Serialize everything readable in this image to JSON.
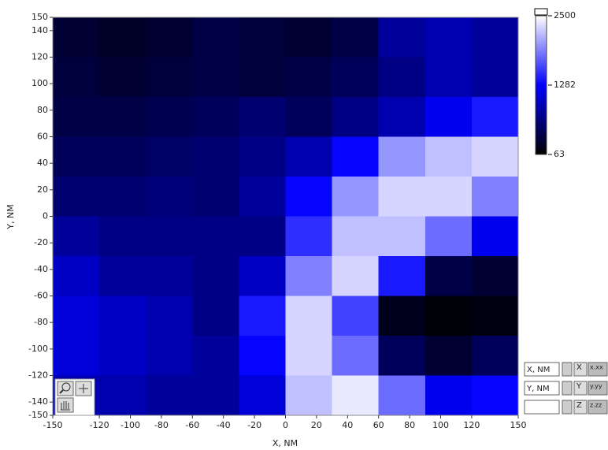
{
  "chart_data": {
    "type": "heatmap",
    "xlabel": "X, NM",
    "ylabel": "Y, NM",
    "xlim": [
      -150,
      150
    ],
    "ylim": [
      -150,
      150
    ],
    "xticks": [
      -150,
      -120,
      -100,
      -80,
      -60,
      -40,
      -20,
      0,
      20,
      40,
      60,
      80,
      100,
      120,
      150
    ],
    "yticks": [
      150,
      140,
      120,
      100,
      80,
      60,
      40,
      20,
      0,
      -20,
      -40,
      -60,
      -80,
      -100,
      -120,
      -140,
      -150
    ],
    "x": [
      -135,
      -105,
      -75,
      -45,
      -15,
      15,
      45,
      75,
      105,
      135
    ],
    "y": [
      135,
      105,
      75,
      45,
      15,
      -15,
      -45,
      -75,
      -105,
      -135
    ],
    "z": [
      [
        300,
        250,
        300,
        400,
        350,
        300,
        400,
        800,
        900,
        800
      ],
      [
        350,
        300,
        350,
        400,
        350,
        400,
        500,
        700,
        900,
        800
      ],
      [
        400,
        400,
        450,
        500,
        600,
        500,
        700,
        900,
        1200,
        1400
      ],
      [
        500,
        500,
        550,
        600,
        700,
        900,
        1300,
        2000,
        2200,
        2300
      ],
      [
        600,
        600,
        650,
        600,
        800,
        1300,
        2000,
        2300,
        2300,
        1900
      ],
      [
        800,
        700,
        700,
        700,
        700,
        1500,
        2200,
        2200,
        1800,
        1200
      ],
      [
        1000,
        800,
        800,
        700,
        1000,
        1900,
        2300,
        1400,
        400,
        300
      ],
      [
        1100,
        1000,
        900,
        700,
        1400,
        2300,
        1600,
        200,
        100,
        150
      ],
      [
        1100,
        1000,
        900,
        800,
        1300,
        2300,
        1800,
        500,
        300,
        500
      ],
      [
        900,
        900,
        800,
        800,
        1100,
        2200,
        2400,
        1800,
        1200,
        1300
      ]
    ],
    "zlim": [
      63,
      2500
    ],
    "zticks": [
      63,
      1282,
      2500
    ],
    "colors": [
      "#000000",
      "#0000ff",
      "#ffffff"
    ]
  },
  "controls": {
    "x_cursor": "X, NM",
    "y_cursor": "Y, NM",
    "x_format": "x.xx",
    "y_format": "y.yy",
    "z_format": "z.zz",
    "x_icon": "X",
    "y_icon": "Y",
    "z_icon": "Z"
  }
}
